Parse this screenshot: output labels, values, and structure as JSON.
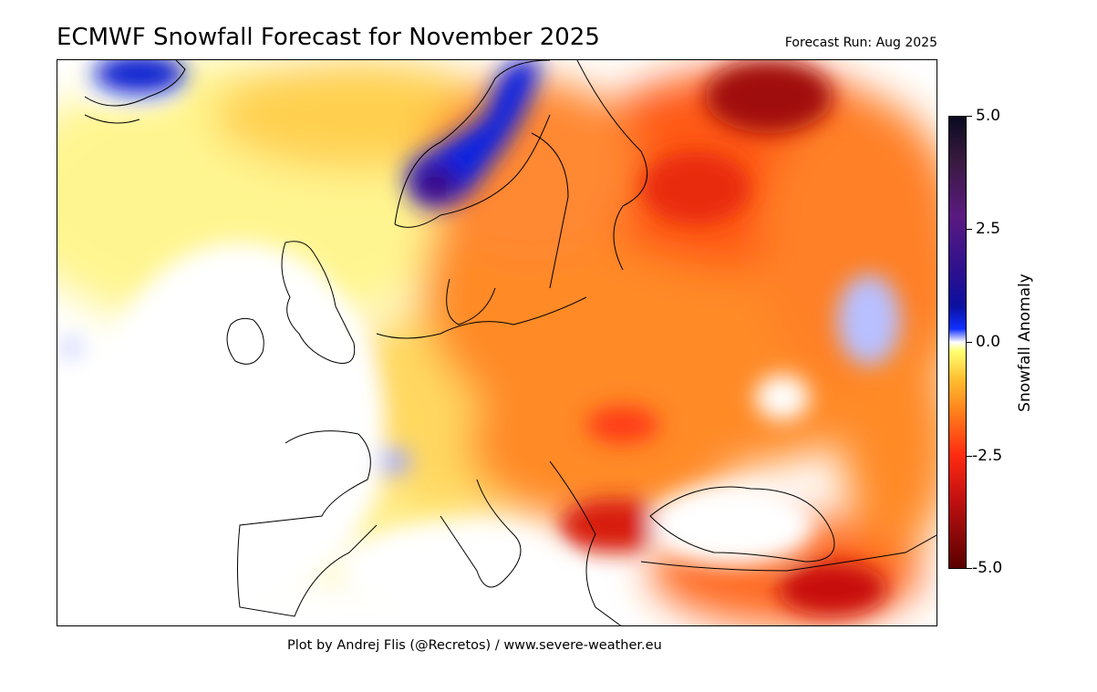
{
  "title": "ECMWF Snowfall Forecast for November 2025",
  "forecast_run": "Forecast Run: Aug 2025",
  "credit": "Plot by Andrej Flis (@Recretos) / www.severe-weather.eu",
  "colorbar": {
    "label": "Snowfall Anomaly",
    "range": [
      -5.0,
      5.0
    ],
    "ticks": [
      "5.0",
      "2.5",
      "0.0",
      "-2.5",
      "-5.0"
    ],
    "colors": {
      "max": "#0a0a20",
      "positive": "#1030ff",
      "zero": "#ffffff",
      "slightly_negative": "#ffc030",
      "negative": "#ff2a10",
      "min": "#5a0000"
    }
  },
  "map": {
    "region": "Europe",
    "features": [
      "coastlines",
      "country-borders",
      "graticule"
    ]
  }
}
